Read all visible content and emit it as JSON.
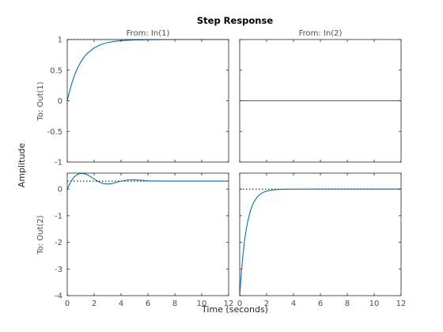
{
  "chart_data": {
    "type": "line",
    "title": "Step Response",
    "xlabel": "Time (seconds)",
    "ylabel": "Amplitude",
    "grid": false,
    "colors": {
      "response": "#0072bd",
      "steady_state": "#000000",
      "axes": "#262626",
      "label": "#4d4d4d"
    },
    "columns": [
      "From: In(1)",
      "From: In(2)"
    ],
    "rows": [
      "To: Out(1)",
      "To: Out(2)"
    ],
    "xlim": [
      0,
      12
    ],
    "xticks": [
      "0",
      "2",
      "4",
      "6",
      "8",
      "10",
      "12"
    ],
    "row_ylims": [
      [
        -1,
        1
      ],
      [
        -4,
        0.6
      ]
    ],
    "row_yticks": [
      [
        "1",
        "0.5",
        "0",
        "-0.5",
        "-1"
      ],
      [
        "0",
        "-1",
        "-2",
        "-3",
        "-4"
      ]
    ],
    "panels": [
      {
        "row": 0,
        "col": 0,
        "steady_state": 1,
        "series": [
          {
            "x": [
              0,
              0.1,
              0.2,
              0.3,
              0.5,
              0.75,
              1,
              1.25,
              1.5,
              2,
              2.5,
              3,
              3.5,
              4,
              5,
              6,
              7,
              8,
              10,
              12
            ],
            "y": [
              0,
              0.095,
              0.181,
              0.259,
              0.393,
              0.528,
              0.632,
              0.713,
              0.777,
              0.865,
              0.918,
              0.95,
              0.97,
              0.982,
              0.993,
              0.998,
              0.999,
              1,
              1,
              1
            ]
          }
        ]
      },
      {
        "row": 0,
        "col": 1,
        "steady_state": 0,
        "series": [
          {
            "x": [
              0,
              12
            ],
            "y": [
              0,
              0
            ]
          }
        ]
      },
      {
        "row": 1,
        "col": 0,
        "steady_state": 0.3,
        "series": [
          {
            "x": [
              0,
              0.25,
              0.5,
              0.75,
              1,
              1.25,
              1.5,
              1.75,
              2,
              2.25,
              2.5,
              2.75,
              3,
              3.25,
              3.5,
              3.75,
              4,
              4.5,
              5,
              5.5,
              6,
              7,
              8,
              10,
              12
            ],
            "y": [
              0,
              0.27,
              0.45,
              0.55,
              0.59,
              0.58,
              0.54,
              0.46,
              0.38,
              0.3,
              0.24,
              0.2,
              0.19,
              0.2,
              0.23,
              0.27,
              0.3,
              0.34,
              0.35,
              0.33,
              0.31,
              0.3,
              0.3,
              0.3,
              0.3
            ]
          }
        ]
      },
      {
        "row": 1,
        "col": 1,
        "steady_state": 0,
        "series": [
          {
            "x": [
              0,
              0.1,
              0.2,
              0.3,
              0.4,
              0.5,
              0.6,
              0.8,
              1,
              1.25,
              1.5,
              1.75,
              2,
              2.5,
              3,
              4,
              6,
              8,
              12
            ],
            "y": [
              -4,
              -3.274,
              -2.681,
              -2.195,
              -1.797,
              -1.472,
              -1.205,
              -0.808,
              -0.541,
              -0.328,
              -0.199,
              -0.121,
              -0.073,
              -0.027,
              -0.01,
              -0.001,
              0,
              0,
              0
            ]
          }
        ]
      }
    ]
  }
}
